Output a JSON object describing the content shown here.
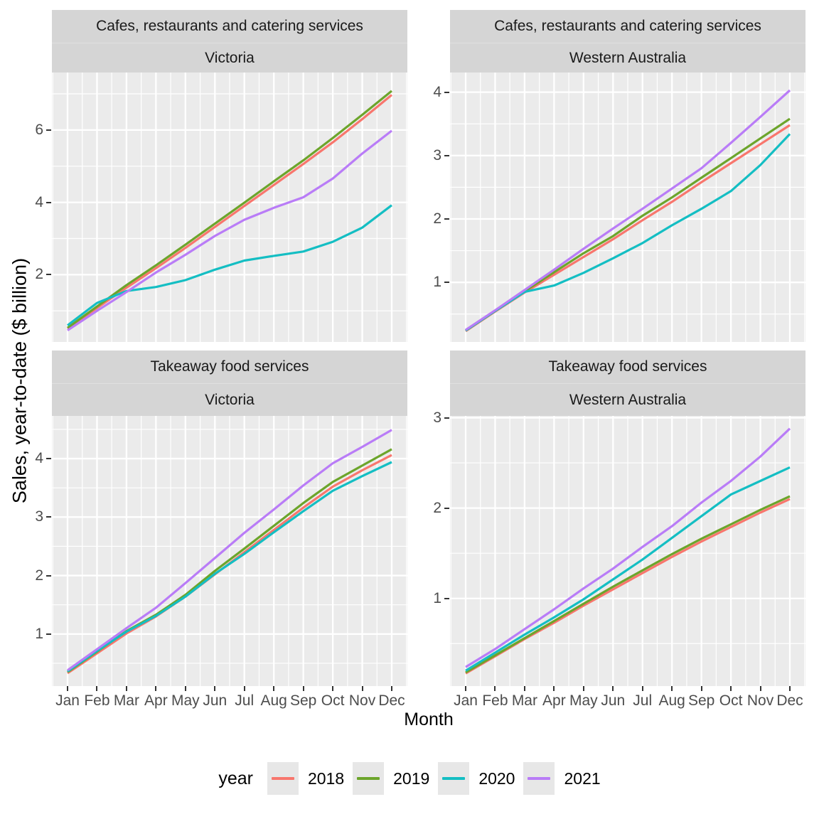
{
  "figure": {
    "y_axis_title": "Sales, year-to-date ($ billion)",
    "x_axis_title": "Month",
    "panel_background": "#ebebeb",
    "strip_background": "#d5d5d5",
    "gridline_color": "#ffffff",
    "legend": {
      "title": "year",
      "entries": [
        {
          "label": "2018",
          "color": "#F8766D"
        },
        {
          "label": "2019",
          "color": "#6CA52B"
        },
        {
          "label": "2020",
          "color": "#14BEC3"
        },
        {
          "label": "2021",
          "color": "#B97CF7"
        }
      ]
    }
  },
  "months": [
    "Jan",
    "Feb",
    "Mar",
    "Apr",
    "May",
    "Jun",
    "Jul",
    "Aug",
    "Sep",
    "Oct",
    "Nov",
    "Dec"
  ],
  "chart_data": [
    {
      "type": "line",
      "facet_industry": "Cafes, restaurants and catering services",
      "facet_state": "Victoria",
      "x_categories": "months",
      "ylim": [
        0.14,
        7.59
      ],
      "yticks_major": [
        2,
        4,
        6
      ],
      "yticks_minor": [
        1,
        3,
        5,
        7
      ],
      "show_x_axis": false,
      "series": [
        {
          "name": "2018",
          "color": "#F8766D",
          "values": [
            0.51,
            1.08,
            1.64,
            2.18,
            2.74,
            3.32,
            3.9,
            4.48,
            5.06,
            5.66,
            6.3,
            6.97
          ]
        },
        {
          "name": "2019",
          "color": "#6CA52B",
          "values": [
            0.53,
            1.12,
            1.71,
            2.26,
            2.83,
            3.41,
            3.99,
            4.58,
            5.16,
            5.78,
            6.42,
            7.08
          ]
        },
        {
          "name": "2020",
          "color": "#14BEC3",
          "values": [
            0.6,
            1.22,
            1.55,
            1.66,
            1.85,
            2.14,
            2.39,
            2.52,
            2.64,
            2.91,
            3.3,
            3.92
          ]
        },
        {
          "name": "2021",
          "color": "#B97CF7",
          "values": [
            0.46,
            1.0,
            1.52,
            2.06,
            2.55,
            3.07,
            3.52,
            3.85,
            4.14,
            4.66,
            5.35,
            5.98
          ]
        }
      ]
    },
    {
      "type": "line",
      "facet_industry": "Cafes, restaurants and catering services",
      "facet_state": "Western Australia",
      "x_categories": "months",
      "ylim": [
        0.06,
        4.31
      ],
      "yticks_major": [
        1,
        2,
        3,
        4
      ],
      "yticks_minor": [
        0.5,
        1.5,
        2.5,
        3.5
      ],
      "show_x_axis": false,
      "series": [
        {
          "name": "2018",
          "color": "#F8766D",
          "values": [
            0.23,
            0.54,
            0.84,
            1.12,
            1.4,
            1.68,
            1.98,
            2.27,
            2.58,
            2.88,
            3.18,
            3.48
          ]
        },
        {
          "name": "2019",
          "color": "#6CA52B",
          "values": [
            0.24,
            0.55,
            0.86,
            1.16,
            1.46,
            1.73,
            2.05,
            2.34,
            2.65,
            2.96,
            3.27,
            3.58
          ]
        },
        {
          "name": "2020",
          "color": "#14BEC3",
          "values": [
            0.24,
            0.55,
            0.85,
            0.95,
            1.15,
            1.38,
            1.62,
            1.9,
            2.16,
            2.44,
            2.85,
            3.34
          ]
        },
        {
          "name": "2021",
          "color": "#B97CF7",
          "values": [
            0.25,
            0.56,
            0.88,
            1.2,
            1.53,
            1.85,
            2.16,
            2.48,
            2.8,
            3.2,
            3.61,
            4.03
          ]
        }
      ]
    },
    {
      "type": "line",
      "facet_industry": "Takeaway food services",
      "facet_state": "Victoria",
      "x_categories": "months",
      "ylim": [
        0.11,
        4.73
      ],
      "yticks_major": [
        1,
        2,
        3,
        4
      ],
      "yticks_minor": [
        0.5,
        1.5,
        2.5,
        3.5,
        4.5
      ],
      "show_x_axis": true,
      "series": [
        {
          "name": "2018",
          "color": "#F8766D",
          "values": [
            0.33,
            0.67,
            1.01,
            1.3,
            1.64,
            2.02,
            2.4,
            2.78,
            3.16,
            3.52,
            3.8,
            4.06
          ]
        },
        {
          "name": "2019",
          "color": "#6CA52B",
          "values": [
            0.35,
            0.7,
            1.05,
            1.33,
            1.67,
            2.08,
            2.46,
            2.85,
            3.24,
            3.6,
            3.88,
            4.16
          ]
        },
        {
          "name": "2020",
          "color": "#14BEC3",
          "values": [
            0.36,
            0.71,
            1.04,
            1.31,
            1.64,
            2.03,
            2.37,
            2.74,
            3.1,
            3.45,
            3.7,
            3.94
          ]
        },
        {
          "name": "2021",
          "color": "#B97CF7",
          "values": [
            0.38,
            0.74,
            1.1,
            1.45,
            1.87,
            2.3,
            2.73,
            3.13,
            3.54,
            3.92,
            4.2,
            4.49
          ]
        }
      ]
    },
    {
      "type": "line",
      "facet_industry": "Takeaway food services",
      "facet_state": "Western Australia",
      "x_categories": "months",
      "ylim": [
        0.03,
        3.02
      ],
      "yticks_major": [
        1,
        2,
        3
      ],
      "yticks_minor": [
        0.5,
        1.5,
        2.5
      ],
      "show_x_axis": true,
      "series": [
        {
          "name": "2018",
          "color": "#F8766D",
          "values": [
            0.17,
            0.36,
            0.55,
            0.73,
            0.92,
            1.1,
            1.28,
            1.46,
            1.63,
            1.79,
            1.95,
            2.1
          ]
        },
        {
          "name": "2019",
          "color": "#6CA52B",
          "values": [
            0.18,
            0.37,
            0.56,
            0.75,
            0.94,
            1.13,
            1.31,
            1.49,
            1.66,
            1.82,
            1.98,
            2.13
          ]
        },
        {
          "name": "2020",
          "color": "#14BEC3",
          "values": [
            0.2,
            0.4,
            0.6,
            0.79,
            0.99,
            1.21,
            1.43,
            1.67,
            1.91,
            2.15,
            2.3,
            2.45
          ]
        },
        {
          "name": "2021",
          "color": "#B97CF7",
          "values": [
            0.24,
            0.44,
            0.66,
            0.88,
            1.11,
            1.33,
            1.57,
            1.8,
            2.06,
            2.3,
            2.57,
            2.88
          ]
        }
      ]
    }
  ]
}
